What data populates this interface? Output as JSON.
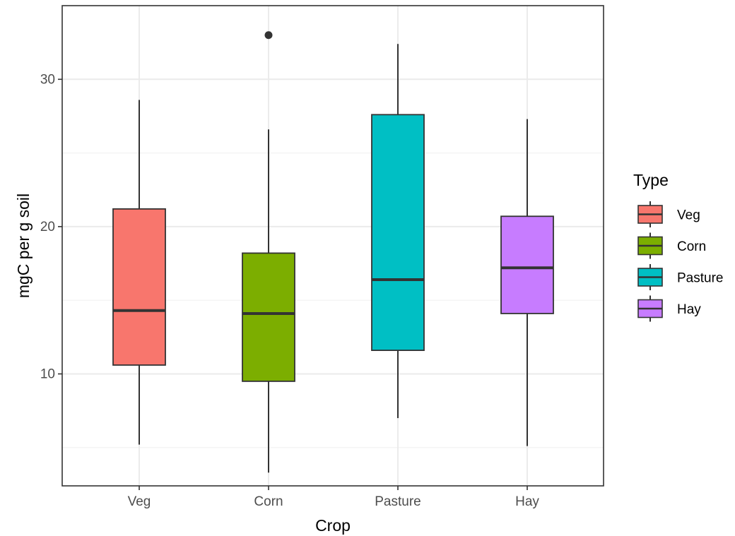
{
  "chart_data": {
    "type": "boxplot",
    "title": "",
    "xlabel": "Crop",
    "ylabel": "mgC per g soil",
    "ylim": [
      2.4,
      35.0
    ],
    "yticks": [
      10,
      20,
      30
    ],
    "minor_yticks": [
      5,
      15,
      25
    ],
    "grid": true,
    "theme": "bw",
    "legend": {
      "title": "Type",
      "position": "right",
      "entries": [
        "Veg",
        "Corn",
        "Pasture",
        "Hay"
      ]
    },
    "categories": [
      "Veg",
      "Corn",
      "Pasture",
      "Hay"
    ],
    "series": [
      {
        "name": "Veg",
        "color": "#F8766D",
        "whisker_low": 5.2,
        "q1": 10.6,
        "median": 14.3,
        "q3": 21.2,
        "whisker_high": 28.6,
        "outliers": []
      },
      {
        "name": "Corn",
        "color": "#7CAE00",
        "whisker_low": 3.3,
        "q1": 9.5,
        "median": 14.1,
        "q3": 18.2,
        "whisker_high": 26.6,
        "outliers": [
          33.0
        ]
      },
      {
        "name": "Pasture",
        "color": "#00BFC4",
        "whisker_low": 7.0,
        "q1": 11.6,
        "median": 16.4,
        "q3": 27.6,
        "whisker_high": 32.4,
        "outliers": []
      },
      {
        "name": "Hay",
        "color": "#C77CFF",
        "whisker_low": 5.1,
        "q1": 14.1,
        "median": 17.2,
        "q3": 20.7,
        "whisker_high": 27.3,
        "outliers": []
      }
    ]
  }
}
